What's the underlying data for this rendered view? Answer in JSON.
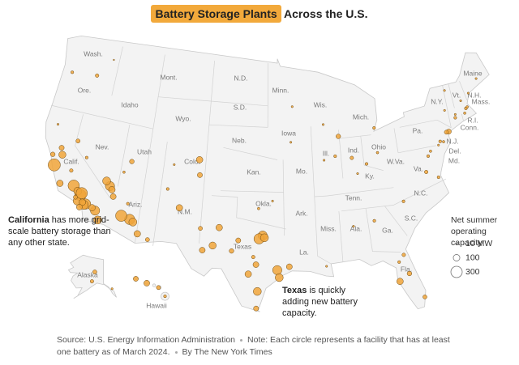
{
  "title_highlight": "Battery Storage Plants",
  "title_rest": "Across the U.S.",
  "state_labels": [
    "Wash.",
    "Ore.",
    "Calif.",
    "Nev.",
    "Idaho",
    "Mont.",
    "Wyo.",
    "Utah",
    "Ariz.",
    "Colo.",
    "N.M.",
    "N.D.",
    "S.D.",
    "Neb.",
    "Kan.",
    "Okla.",
    "Texas",
    "Minn.",
    "Iowa",
    "Mo.",
    "Ark.",
    "La.",
    "Wis.",
    "Ill.",
    "Mich.",
    "Ind.",
    "Ky.",
    "Tenn.",
    "Miss.",
    "Ala.",
    "Ga.",
    "Fla.",
    "S.C.",
    "N.C.",
    "Va.",
    "W.Va.",
    "Ohio",
    "Pa.",
    "N.Y.",
    "Md.",
    "Del.",
    "N.J.",
    "Conn.",
    "R.I.",
    "Mass.",
    "Vt.",
    "N.H.",
    "Maine",
    "Alaska",
    "Hawaii"
  ],
  "annotations": [
    {
      "bold": "California",
      "text": "has more grid-scale battery storage than any other state."
    },
    {
      "bold": "Texas",
      "text": "is quickly adding new battery capacity."
    }
  ],
  "source": "Source: U.S. Energy Information Administration",
  "note": "Note: Each circle represents a facility that has at least one battery as of March 2024.",
  "credit": "By The New York Times",
  "chart_data": {
    "type": "bubble-map",
    "color": "#f0a53a",
    "legend_title": "Net summer operating capacity",
    "legend_sizes": [
      {
        "value": 10,
        "label": "10 MW"
      },
      100,
      300
    ],
    "x": [
      -117.2,
      -117.4,
      -118.0,
      -118.2,
      -117.6,
      -119.0,
      -121.8,
      -120.6,
      -118.4,
      -116.0,
      -115.5,
      -117.8,
      -122.3,
      -121.2,
      -121.5,
      -116.4,
      -117.9,
      -118.5,
      -119.7,
      -122.7,
      -114.9,
      -115.4,
      -114.6,
      -119.8,
      -118.3,
      -112.0,
      -111.6,
      -113.0,
      -114.3,
      -110.9,
      -109.7,
      -112.5,
      -122.8,
      -119.5,
      -117.8,
      -112.9,
      -113.6,
      -104.8,
      -104.6,
      -107.8,
      -106.6,
      -104.0,
      -108.2,
      -97.0,
      -97.4,
      -96.8,
      -98.5,
      -95.4,
      -95.2,
      -97.7,
      -101.9,
      -102.5,
      -103.6,
      -99.7,
      -97.5,
      -97.6,
      -94.1,
      -98.0,
      -100.4,
      -97.5,
      -95.9,
      -87.6,
      -88.2,
      -89.6,
      -86.2,
      -84.5,
      -83.0,
      -85.7,
      -93.3,
      -89.4,
      -83.0,
      -93.6,
      -84.4,
      -81.7,
      -82.5,
      -80.2,
      -81.4,
      -80.8,
      -77.6,
      -76.3,
      -86.8,
      -90.1,
      -82.3,
      -71.1,
      -71.4,
      -72.7,
      -73.9,
      -74.2,
      -74.8,
      -75.2,
      -76.6,
      -77.0,
      -72.6,
      -70.9,
      -73.8,
      -73.2,
      -71.5,
      -70.3,
      -68.8,
      -75.5,
      -149.9,
      -147.7,
      -134.4,
      -155.5,
      -158.0,
      -156.4,
      -159.5
    ],
    "y": [
      34.0,
      33.9,
      34.7,
      34.1,
      34.1,
      35.4,
      36.8,
      35.3,
      35.0,
      33.6,
      32.8,
      33.6,
      37.7,
      37.9,
      38.5,
      33.8,
      34.9,
      34.4,
      36.7,
      40.5,
      36.1,
      36.5,
      35.8,
      39.5,
      38.2,
      33.4,
      33.2,
      33.6,
      35.2,
      32.2,
      31.8,
      34.8,
      45.5,
      45.8,
      47.6,
      38.7,
      37.6,
      39.7,
      38.3,
      39.0,
      35.1,
      33.4,
      36.7,
      33.0,
      32.7,
      32.8,
      29.4,
      29.8,
      29.1,
      30.3,
      33.6,
      31.9,
      31.4,
      32.5,
      27.8,
      26.2,
      30.1,
      31.0,
      31.5,
      35.5,
      36.2,
      41.9,
      40.1,
      39.8,
      39.8,
      39.1,
      40.0,
      38.3,
      44.9,
      43.1,
      42.3,
      41.6,
      33.8,
      30.3,
      27.9,
      26.1,
      28.5,
      35.2,
      37.5,
      36.8,
      33.5,
      30.0,
      29.7,
      42.4,
      42.0,
      41.8,
      40.7,
      40.7,
      39.9,
      40.0,
      39.3,
      38.9,
      42.1,
      42.5,
      42.7,
      44.5,
      43.2,
      43.7,
      44.8,
      39.7,
      61.2,
      64.8,
      58.3,
      19.6,
      21.4,
      20.8,
      22.0
    ],
    "sizes": [
      250,
      200,
      300,
      150,
      100,
      300,
      350,
      100,
      150,
      200,
      150,
      80,
      50,
      120,
      60,
      100,
      300,
      40,
      30,
      10,
      200,
      150,
      100,
      40,
      20,
      250,
      150,
      300,
      80,
      100,
      40,
      20,
      20,
      30,
      5,
      50,
      15,
      100,
      60,
      10,
      100,
      40,
      20,
      200,
      250,
      150,
      100,
      200,
      150,
      80,
      100,
      120,
      80,
      60,
      150,
      60,
      80,
      30,
      50,
      15,
      10,
      50,
      20,
      10,
      30,
      20,
      15,
      10,
      10,
      10,
      20,
      10,
      20,
      30,
      100,
      40,
      50,
      20,
      30,
      20,
      10,
      10,
      20,
      20,
      15,
      20,
      60,
      40,
      15,
      20,
      15,
      20,
      10,
      15,
      10,
      10,
      10,
      10,
      10,
      10,
      30,
      40,
      10,
      20,
      80,
      40,
      60
    ]
  }
}
